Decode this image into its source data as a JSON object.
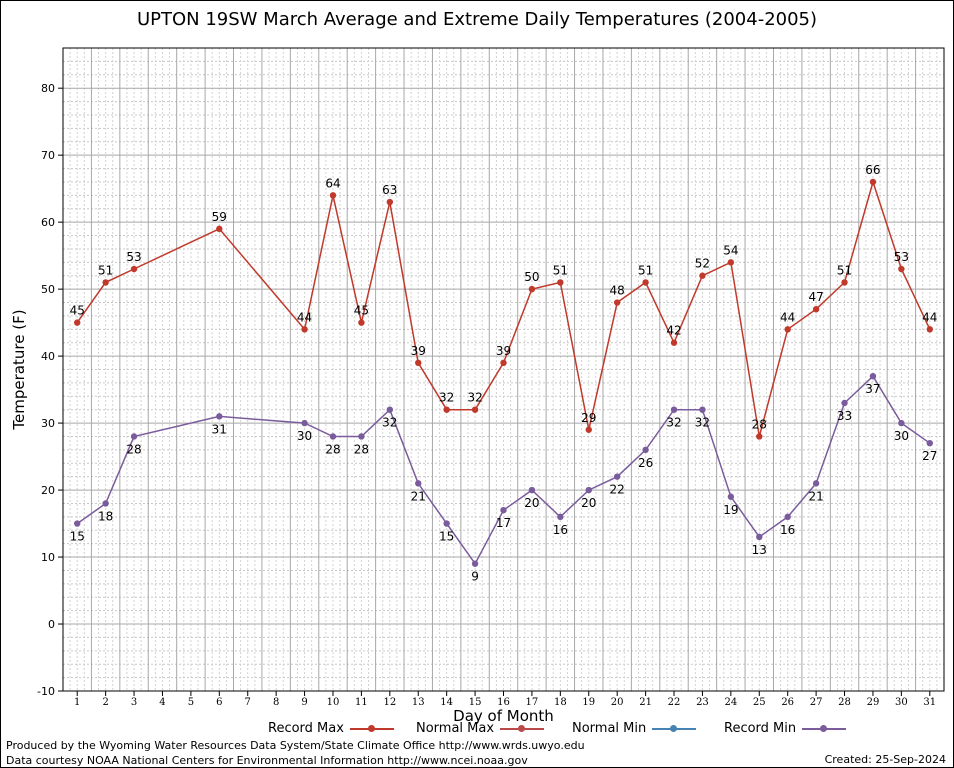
{
  "chart_data": {
    "type": "line",
    "title": "UPTON 19SW March Average and Extreme Daily Temperatures (2004-2005)",
    "xlabel": "Day of Month",
    "ylabel": "Temperature (F)",
    "xlim": [
      0.5,
      31.5
    ],
    "ylim": [
      -10,
      86
    ],
    "x_ticks": [
      1,
      2,
      3,
      4,
      5,
      6,
      7,
      8,
      9,
      10,
      11,
      12,
      13,
      14,
      15,
      16,
      17,
      18,
      19,
      20,
      21,
      22,
      23,
      24,
      25,
      26,
      27,
      28,
      29,
      30,
      31
    ],
    "y_ticks": [
      -10,
      0,
      10,
      20,
      30,
      40,
      50,
      60,
      70,
      80
    ],
    "grid": true,
    "legend_position": "bottom",
    "series": [
      {
        "name": "Record Max",
        "color": "#c0392b",
        "points": [
          [
            1,
            45
          ],
          [
            2,
            51
          ],
          [
            3,
            53
          ],
          [
            6,
            59
          ],
          [
            9,
            44
          ],
          [
            10,
            64
          ],
          [
            11,
            45
          ],
          [
            12,
            63
          ],
          [
            13,
            39
          ],
          [
            14,
            32
          ],
          [
            15,
            32
          ],
          [
            16,
            39
          ],
          [
            17,
            50
          ],
          [
            18,
            51
          ],
          [
            19,
            29
          ],
          [
            20,
            48
          ],
          [
            21,
            51
          ],
          [
            22,
            42
          ],
          [
            23,
            52
          ],
          [
            24,
            54
          ],
          [
            25,
            28
          ],
          [
            26,
            44
          ],
          [
            27,
            47
          ],
          [
            28,
            51
          ],
          [
            29,
            66
          ],
          [
            30,
            53
          ],
          [
            31,
            44
          ]
        ],
        "label_position": "above"
      },
      {
        "name": "Normal Max",
        "color": "#b84a4a",
        "points": []
      },
      {
        "name": "Normal Min",
        "color": "#4682b4",
        "points": []
      },
      {
        "name": "Record Min",
        "color": "#7a5c9c",
        "points": [
          [
            1,
            15
          ],
          [
            2,
            18
          ],
          [
            3,
            28
          ],
          [
            6,
            31
          ],
          [
            9,
            30
          ],
          [
            10,
            28
          ],
          [
            11,
            28
          ],
          [
            12,
            32
          ],
          [
            13,
            21
          ],
          [
            14,
            15
          ],
          [
            15,
            9
          ],
          [
            16,
            17
          ],
          [
            17,
            20
          ],
          [
            18,
            16
          ],
          [
            19,
            20
          ],
          [
            20,
            22
          ],
          [
            21,
            26
          ],
          [
            22,
            32
          ],
          [
            23,
            32
          ],
          [
            24,
            19
          ],
          [
            25,
            13
          ],
          [
            26,
            16
          ],
          [
            27,
            21
          ],
          [
            28,
            33
          ],
          [
            29,
            37
          ],
          [
            30,
            30
          ],
          [
            31,
            27
          ]
        ],
        "label_position": "below"
      }
    ]
  },
  "legend": {
    "record_max": "Record Max",
    "normal_max": "Normal Max",
    "normal_min": "Normal Min",
    "record_min": "Record Min"
  },
  "footer": {
    "produced_by": "Produced by the Wyoming Water Resources Data System/State Climate Office http://www.wrds.uwyo.edu",
    "courtesy": "Data courtesy NOAA National Centers for Environmental Information http://www.ncei.noaa.gov",
    "created": "Created:  25-Sep-2024"
  }
}
